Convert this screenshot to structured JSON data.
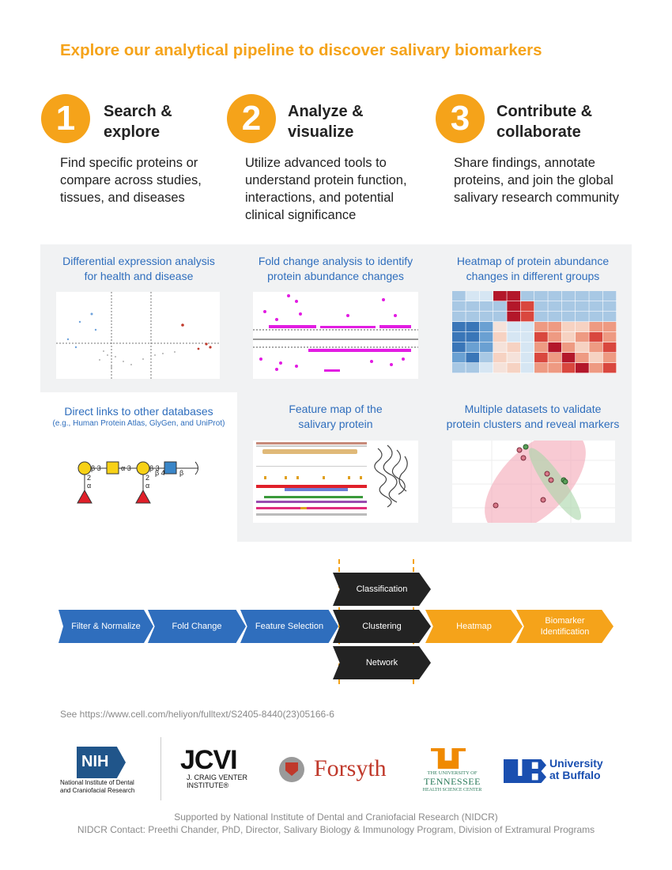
{
  "headline": "Explore our analytical pipeline to discover salivary biomarkers",
  "steps": [
    {
      "number": "1",
      "title_line1": "Search &",
      "title_line2": "explore",
      "desc_line1": "Find specific proteins or",
      "desc_line2": "compare across studies,",
      "desc_line3": "tissues, and diseases",
      "desc_line4": ""
    },
    {
      "number": "2",
      "title_line1": "Analyze &",
      "title_line2": "visualize",
      "desc_line1": "Utilize advanced tools to",
      "desc_line2": "understand protein function,",
      "desc_line3": "interactions, and potential",
      "desc_line4": "clinical significance"
    },
    {
      "number": "3",
      "title_line1": "Contribute &",
      "title_line2": "collaborate",
      "desc_line1": "Share findings, annotate",
      "desc_line2": "proteins, and join the global",
      "desc_line3": "salivary research community",
      "desc_line4": ""
    }
  ],
  "tiles": [
    {
      "line1": "Differential expression analysis",
      "line2": "for health and disease"
    },
    {
      "line1": "Fold change analysis to identify",
      "line2": "protein abundance changes"
    },
    {
      "line1": "Heatmap of protein abundance",
      "line2": "changes in different groups"
    },
    {
      "line1": "Direct links to other databases",
      "line2": "(e.g., Human Protein Atlas, GlyGen, and UniProt)"
    },
    {
      "line1": "Feature map of the",
      "line2": "salivary protein"
    },
    {
      "line1": "Multiple datasets to validate",
      "line2": "protein clusters and reveal markers"
    }
  ],
  "glycan": {
    "beta3": "β 3",
    "alpha3": "α 3",
    "beta3b": "β 3",
    "beta4": "β 4",
    "beta": "β",
    "two_a": "2",
    "alpha_a": "α",
    "two_b": "2",
    "alpha_b": "α"
  },
  "pipeline": {
    "filter": "Filter & Normalize",
    "fold": "Fold Change",
    "feature": "Feature Selection",
    "classification": "Classification",
    "clustering": "Clustering",
    "network": "Network",
    "heatmap": "Heatmap",
    "biomarker_line1": "Biomarker",
    "biomarker_line2": "Identification"
  },
  "citation": "See https://www.cell.com/heliyon/fulltext/S2405-8440(23)05166-6",
  "logos": {
    "nih_mark": "NIH",
    "nih_line1": "National Institute of Dental",
    "nih_line2": "and Craniofacial Research",
    "jcvi_mark": "JCVI",
    "jcvi_line1": "J. CRAIG VENTER",
    "jcvi_line2": "INSTITUTE®",
    "forsyth": "Forsyth",
    "ut_line1": "THE UNIVERSITY OF",
    "ut_line2": "TENNESSEE",
    "ut_line3": "HEALTH SCIENCE CENTER",
    "ub_line1": "University",
    "ub_line2": "at Buffalo"
  },
  "footer": {
    "line1": "Supported by National Institute of Dental and Craniofacial Research (NIDCR)",
    "line2": "NIDCR Contact: Preethi Chander, PhD, Director, Salivary Biology & Immunology Program, Division of Extramural Programs"
  },
  "colors": {
    "accent": "#f5a31a",
    "blue": "#2f6ebd",
    "dark": "#232323",
    "tile_bg": "#f1f2f3"
  }
}
